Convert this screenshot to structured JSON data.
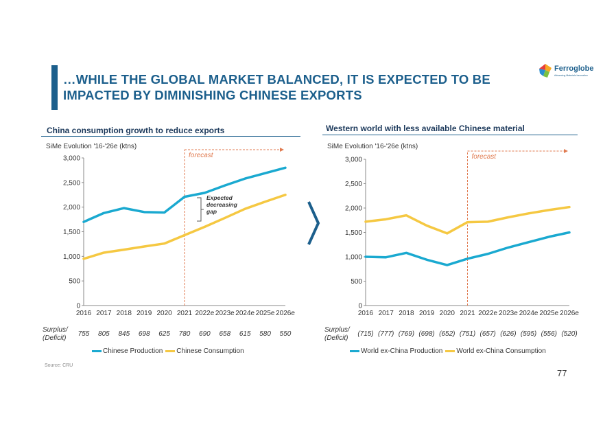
{
  "title_line1": "…WHILE THE GLOBAL MARKET BALANCED, IT IS EXPECTED TO BE",
  "title_line2": "IMPACTED BY DIMINISHING CHINESE EXPORTS",
  "logo": {
    "name": "Ferroglobe",
    "tagline": "Advancing Materials Innovation"
  },
  "left_panel_title": "China consumption growth to reduce exports",
  "right_panel_title": "Western world with less available Chinese material",
  "surplus_label_1": "Surplus/",
  "surplus_label_2": "(Deficit)",
  "source": "Source: CRU",
  "page_number": "77",
  "annotation": {
    "line1": "Expected",
    "line2": "decreasing",
    "line3": "gap"
  },
  "colors": {
    "production": "#1aa9d0",
    "consumption": "#f5c842",
    "forecast": "#e07a4f",
    "axis": "#888888"
  },
  "chart_data": [
    {
      "type": "line",
      "ylabel": "SiMe Evolution '16-'26e (ktns)",
      "ylim": [
        0,
        3000
      ],
      "yticks": [
        "0",
        "500",
        "1,000",
        "1,500",
        "2,000",
        "2,500",
        "3,000"
      ],
      "categories": [
        "2016",
        "2017",
        "2018",
        "2019",
        "2020",
        "2021",
        "2022e",
        "2023e",
        "2024e",
        "2025e",
        "2026e"
      ],
      "forecast_label": "forecast",
      "forecast_from": "2021",
      "series": [
        {
          "name": "Chinese Production",
          "values": [
            1700,
            1880,
            1980,
            1900,
            1890,
            2210,
            2290,
            2440,
            2580,
            2690,
            2800
          ]
        },
        {
          "name": "Chinese Consumption",
          "values": [
            950,
            1075,
            1135,
            1200,
            1260,
            1430,
            1600,
            1780,
            1965,
            2110,
            2250
          ]
        }
      ],
      "surplus": [
        "755",
        "805",
        "845",
        "698",
        "625",
        "780",
        "690",
        "658",
        "615",
        "580",
        "550"
      ]
    },
    {
      "type": "line",
      "ylabel": "SiMe Evolution '16-'26e (ktns)",
      "ylim": [
        0,
        3000
      ],
      "yticks": [
        "0",
        "500",
        "1,000",
        "1,500",
        "2,000",
        "2,500",
        "3,000"
      ],
      "categories": [
        "2016",
        "2017",
        "2018",
        "2019",
        "2020",
        "2021",
        "2022e",
        "2023e",
        "2024e",
        "2025e",
        "2026e"
      ],
      "forecast_label": "forecast",
      "forecast_from": "2021",
      "series": [
        {
          "name": "World ex-China Production",
          "values": [
            1000,
            990,
            1080,
            940,
            830,
            960,
            1060,
            1190,
            1300,
            1410,
            1500
          ]
        },
        {
          "name": "World ex-China Consumption",
          "values": [
            1720,
            1770,
            1850,
            1640,
            1480,
            1710,
            1720,
            1810,
            1890,
            1960,
            2020
          ]
        }
      ],
      "surplus": [
        "(715)",
        "(777)",
        "(769)",
        "(698)",
        "(652)",
        "(751)",
        "(657)",
        "(626)",
        "(595)",
        "(556)",
        "(520)"
      ]
    }
  ]
}
